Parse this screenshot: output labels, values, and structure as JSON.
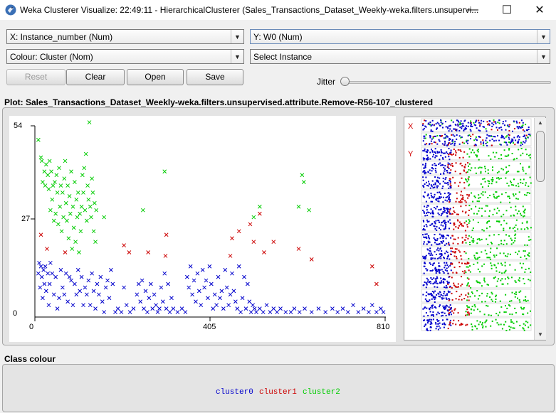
{
  "window": {
    "title": "Weka Clusterer Visualize: 22:49:11 - HierarchicalClusterer (Sales_Transactions_Dataset_Weekly-weka.filters.unsupervi...",
    "minimize": "—",
    "maximize": "☐",
    "close": "✕"
  },
  "controls": {
    "x_axis": "X: Instance_number (Num)",
    "y_axis": "Y: W0 (Num)",
    "colour": "Colour: Cluster (Nom)",
    "select_instance": "Select Instance",
    "reset": "Reset",
    "clear": "Clear",
    "open": "Open",
    "save": "Save",
    "jitter": "Jitter",
    "jitter_value": 0
  },
  "plot": {
    "title": "Plot: Sales_Transactions_Dataset_Weekly-weka.filters.unsupervised.attribute.Remove-R56-107_clustered",
    "y_max": "54",
    "y_mid": "27",
    "y_min": "0",
    "x_min": "0",
    "x_mid": "405",
    "x_max": "810",
    "marker": "x"
  },
  "attribute_panel": {
    "x_marker": "X",
    "y_marker": "Y"
  },
  "class_colour": {
    "title": "Class colour",
    "clusters": [
      {
        "name": "cluster0",
        "color": "#0000cc"
      },
      {
        "name": "cluster1",
        "color": "#cc0000"
      },
      {
        "name": "cluster2",
        "color": "#00cc00"
      }
    ]
  },
  "chart_data": {
    "type": "scatter",
    "title": "Plot: Sales_Transactions_Dataset_Weekly-weka.filters.unsupervised.attribute.Remove-R56-107_clustered",
    "xlabel": "Instance_number",
    "ylabel": "W0",
    "xlim": [
      0,
      810
    ],
    "ylim": [
      0,
      54
    ],
    "x_ticks": [
      "0",
      "405",
      "810"
    ],
    "y_ticks": [
      "0",
      "27",
      "54"
    ],
    "grid": false,
    "legend": "bottom",
    "series": [
      {
        "name": "cluster0",
        "color": "#0000cc",
        "points": [
          [
            8,
            12
          ],
          [
            10,
            15
          ],
          [
            12,
            8
          ],
          [
            14,
            14
          ],
          [
            16,
            11
          ],
          [
            18,
            5
          ],
          [
            20,
            13
          ],
          [
            22,
            9
          ],
          [
            24,
            14
          ],
          [
            26,
            7
          ],
          [
            30,
            12
          ],
          [
            32,
            3
          ],
          [
            34,
            9
          ],
          [
            36,
            15
          ],
          [
            40,
            12
          ],
          [
            44,
            6
          ],
          [
            48,
            11
          ],
          [
            52,
            2
          ],
          [
            56,
            5
          ],
          [
            60,
            13
          ],
          [
            64,
            8
          ],
          [
            68,
            6
          ],
          [
            72,
            12
          ],
          [
            76,
            4
          ],
          [
            80,
            11
          ],
          [
            84,
            10
          ],
          [
            88,
            3
          ],
          [
            92,
            9
          ],
          [
            96,
            6
          ],
          [
            100,
            13
          ],
          [
            104,
            7
          ],
          [
            108,
            11
          ],
          [
            112,
            3
          ],
          [
            116,
            8
          ],
          [
            120,
            6
          ],
          [
            124,
            10
          ],
          [
            128,
            3
          ],
          [
            132,
            12
          ],
          [
            136,
            7
          ],
          [
            140,
            2
          ],
          [
            144,
            9
          ],
          [
            148,
            6
          ],
          [
            152,
            11
          ],
          [
            156,
            4
          ],
          [
            160,
            1
          ],
          [
            164,
            8
          ],
          [
            168,
            10
          ],
          [
            172,
            5
          ],
          [
            176,
            13
          ],
          [
            180,
            9
          ],
          [
            186,
            1
          ],
          [
            192,
            2
          ],
          [
            200,
            1
          ],
          [
            206,
            8
          ],
          [
            212,
            3
          ],
          [
            220,
            1
          ],
          [
            228,
            2
          ],
          [
            236,
            6
          ],
          [
            240,
            9
          ],
          [
            244,
            4
          ],
          [
            248,
            10
          ],
          [
            252,
            2
          ],
          [
            256,
            7
          ],
          [
            260,
            1
          ],
          [
            264,
            5
          ],
          [
            268,
            9
          ],
          [
            272,
            2
          ],
          [
            276,
            6
          ],
          [
            280,
            3
          ],
          [
            284,
            1
          ],
          [
            288,
            2
          ],
          [
            292,
            8
          ],
          [
            296,
            4
          ],
          [
            300,
            12
          ],
          [
            304,
            2
          ],
          [
            308,
            9
          ],
          [
            312,
            1
          ],
          [
            316,
            5
          ],
          [
            320,
            2
          ],
          [
            330,
            1
          ],
          [
            340,
            2
          ],
          [
            348,
            1
          ],
          [
            352,
            11
          ],
          [
            356,
            8
          ],
          [
            360,
            14
          ],
          [
            364,
            6
          ],
          [
            368,
            10
          ],
          [
            372,
            4
          ],
          [
            376,
            12
          ],
          [
            380,
            7
          ],
          [
            384,
            3
          ],
          [
            388,
            13
          ],
          [
            392,
            8
          ],
          [
            396,
            10
          ],
          [
            400,
            5
          ],
          [
            404,
            14
          ],
          [
            408,
            9
          ],
          [
            412,
            2
          ],
          [
            416,
            6
          ],
          [
            420,
            3
          ],
          [
            424,
            11
          ],
          [
            428,
            5
          ],
          [
            432,
            7
          ],
          [
            436,
            2
          ],
          [
            440,
            13
          ],
          [
            444,
            8
          ],
          [
            448,
            3
          ],
          [
            452,
            6
          ],
          [
            456,
            12
          ],
          [
            460,
            7
          ],
          [
            464,
            4
          ],
          [
            468,
            2
          ],
          [
            472,
            14
          ],
          [
            476,
            1
          ],
          [
            480,
            5
          ],
          [
            484,
            11
          ],
          [
            488,
            2
          ],
          [
            492,
            9
          ],
          [
            496,
            4
          ],
          [
            500,
            1
          ],
          [
            504,
            3
          ],
          [
            508,
            2
          ],
          [
            512,
            1
          ],
          [
            520,
            2
          ],
          [
            528,
            1
          ],
          [
            536,
            3
          ],
          [
            544,
            1
          ],
          [
            552,
            2
          ],
          [
            560,
            1
          ],
          [
            568,
            2
          ],
          [
            580,
            1
          ],
          [
            592,
            1
          ],
          [
            600,
            2
          ],
          [
            612,
            1
          ],
          [
            624,
            2
          ],
          [
            640,
            1
          ],
          [
            656,
            2
          ],
          [
            672,
            1
          ],
          [
            688,
            2
          ],
          [
            700,
            1
          ],
          [
            712,
            2
          ],
          [
            724,
            1
          ],
          [
            736,
            3
          ],
          [
            748,
            1
          ],
          [
            760,
            2
          ],
          [
            772,
            1
          ],
          [
            780,
            3
          ],
          [
            790,
            1
          ],
          [
            800,
            2
          ],
          [
            806,
            1
          ]
        ]
      },
      {
        "name": "cluster1",
        "color": "#cc0000",
        "points": [
          [
            14,
            23
          ],
          [
            28,
            19
          ],
          [
            70,
            18
          ],
          [
            206,
            20
          ],
          [
            218,
            18
          ],
          [
            262,
            18
          ],
          [
            302,
            17
          ],
          [
            304,
            23
          ],
          [
            452,
            17
          ],
          [
            456,
            22
          ],
          [
            472,
            24
          ],
          [
            498,
            26
          ],
          [
            506,
            21
          ],
          [
            520,
            29
          ],
          [
            530,
            18
          ],
          [
            552,
            21
          ],
          [
            610,
            19
          ],
          [
            640,
            16
          ],
          [
            780,
            14
          ],
          [
            790,
            9
          ]
        ]
      },
      {
        "name": "cluster2",
        "color": "#00cc00",
        "points": [
          [
            8,
            50
          ],
          [
            14,
            45
          ],
          [
            16,
            44
          ],
          [
            18,
            38
          ],
          [
            22,
            41
          ],
          [
            24,
            37
          ],
          [
            26,
            43
          ],
          [
            30,
            40
          ],
          [
            32,
            36
          ],
          [
            34,
            44
          ],
          [
            36,
            30
          ],
          [
            38,
            41
          ],
          [
            40,
            33
          ],
          [
            42,
            37
          ],
          [
            44,
            27
          ],
          [
            46,
            38
          ],
          [
            48,
            29
          ],
          [
            50,
            40
          ],
          [
            52,
            35
          ],
          [
            54,
            26
          ],
          [
            56,
            42
          ],
          [
            58,
            31
          ],
          [
            60,
            37
          ],
          [
            62,
            24
          ],
          [
            64,
            35
          ],
          [
            66,
            28
          ],
          [
            68,
            39
          ],
          [
            70,
            44
          ],
          [
            72,
            32
          ],
          [
            74,
            27
          ],
          [
            76,
            37
          ],
          [
            78,
            22
          ],
          [
            80,
            34
          ],
          [
            82,
            29
          ],
          [
            84,
            41
          ],
          [
            86,
            19
          ],
          [
            88,
            31
          ],
          [
            90,
            25
          ],
          [
            92,
            38
          ],
          [
            94,
            21
          ],
          [
            96,
            33
          ],
          [
            98,
            28
          ],
          [
            100,
            35
          ],
          [
            102,
            18
          ],
          [
            104,
            29
          ],
          [
            106,
            24
          ],
          [
            108,
            31
          ],
          [
            110,
            40
          ],
          [
            112,
            35
          ],
          [
            114,
            42
          ],
          [
            116,
            30
          ],
          [
            118,
            46
          ],
          [
            120,
            27
          ],
          [
            122,
            37
          ],
          [
            124,
            33
          ],
          [
            126,
            55
          ],
          [
            128,
            31
          ],
          [
            130,
            28
          ],
          [
            132,
            39
          ],
          [
            134,
            35
          ],
          [
            136,
            24
          ],
          [
            138,
            32
          ],
          [
            140,
            21
          ],
          [
            142,
            30
          ],
          [
            160,
            28
          ],
          [
            250,
            30
          ],
          [
            300,
            41
          ],
          [
            506,
            28
          ],
          [
            520,
            31
          ],
          [
            610,
            31
          ],
          [
            618,
            40
          ],
          [
            622,
            38
          ],
          [
            634,
            30
          ]
        ]
      }
    ]
  }
}
